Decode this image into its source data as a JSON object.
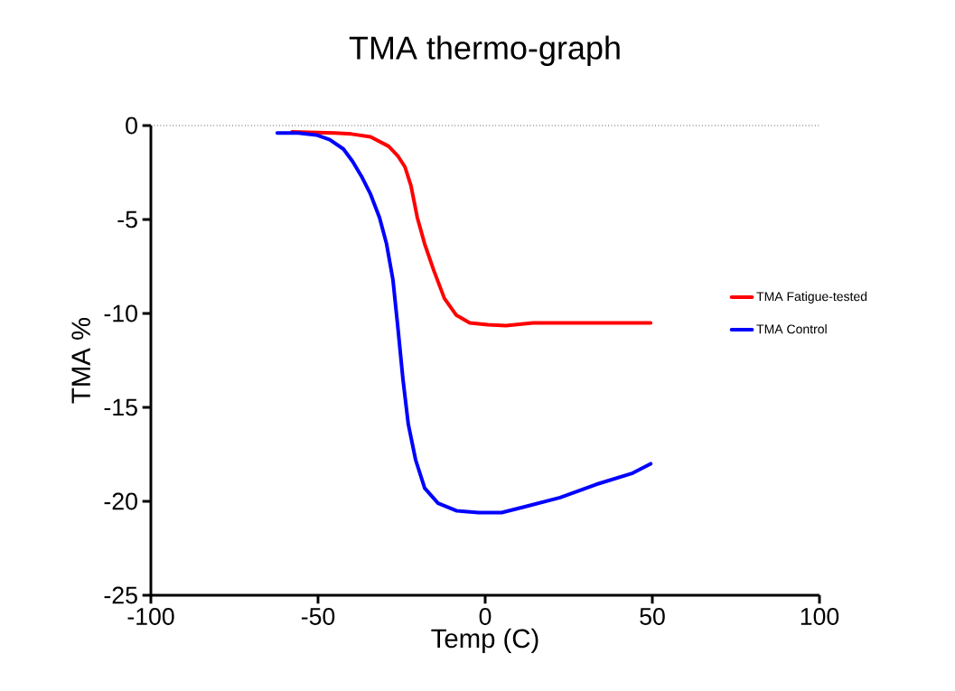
{
  "chart_data": {
    "type": "line",
    "title": "TMA thermo-graph",
    "xlabel": "Temp (C)",
    "ylabel": "TMA %",
    "xlim": [
      -100,
      100
    ],
    "xticks": [
      -100,
      -50,
      0,
      50,
      100
    ],
    "ylim": [
      -25,
      0
    ],
    "yticks": [
      -25,
      -20,
      -15,
      -10,
      -5,
      0
    ],
    "legend": "right",
    "marker": "none",
    "line_style": "solid",
    "grid": false,
    "ref_lines": [
      {
        "axis": "y",
        "value": 0,
        "color": "#000000",
        "line_style": "dotted"
      }
    ],
    "series": [
      {
        "name": "TMA Fatigue-tested",
        "color": "#ff0000",
        "x": [
          -57.8,
          -45,
          -40,
          -34.3,
          -28.9,
          -26.2,
          -24,
          -22.2,
          -20.3,
          -18.1,
          -15.4,
          -12.2,
          -8.6,
          -4.6,
          0.8,
          6.2,
          14.3,
          30.5,
          49.5
        ],
        "values": [
          -0.34,
          -0.4,
          -0.45,
          -0.6,
          -1.1,
          -1.6,
          -2.2,
          -3.2,
          -4.9,
          -6.3,
          -7.7,
          -9.2,
          -10.1,
          -10.5,
          -10.6,
          -10.65,
          -10.5,
          -10.5,
          -10.5
        ]
      },
      {
        "name": "TMA Control",
        "color": "#0000ff",
        "x": [
          -62.2,
          -55.9,
          -50.5,
          -46.5,
          -42.4,
          -39.7,
          -37,
          -34.3,
          -31.6,
          -29.5,
          -27.6,
          -26.2,
          -24.6,
          -23,
          -20.8,
          -18.1,
          -14.1,
          -8.6,
          -1.9,
          4.9,
          11.6,
          22.4,
          33.2,
          44.1,
          49.5
        ],
        "values": [
          -0.4,
          -0.4,
          -0.5,
          -0.75,
          -1.25,
          -1.9,
          -2.7,
          -3.65,
          -4.9,
          -6.3,
          -8.2,
          -10.6,
          -13.5,
          -15.9,
          -17.8,
          -19.3,
          -20.1,
          -20.5,
          -20.6,
          -20.6,
          -20.3,
          -19.8,
          -19.1,
          -18.5,
          -18.0
        ]
      }
    ]
  }
}
